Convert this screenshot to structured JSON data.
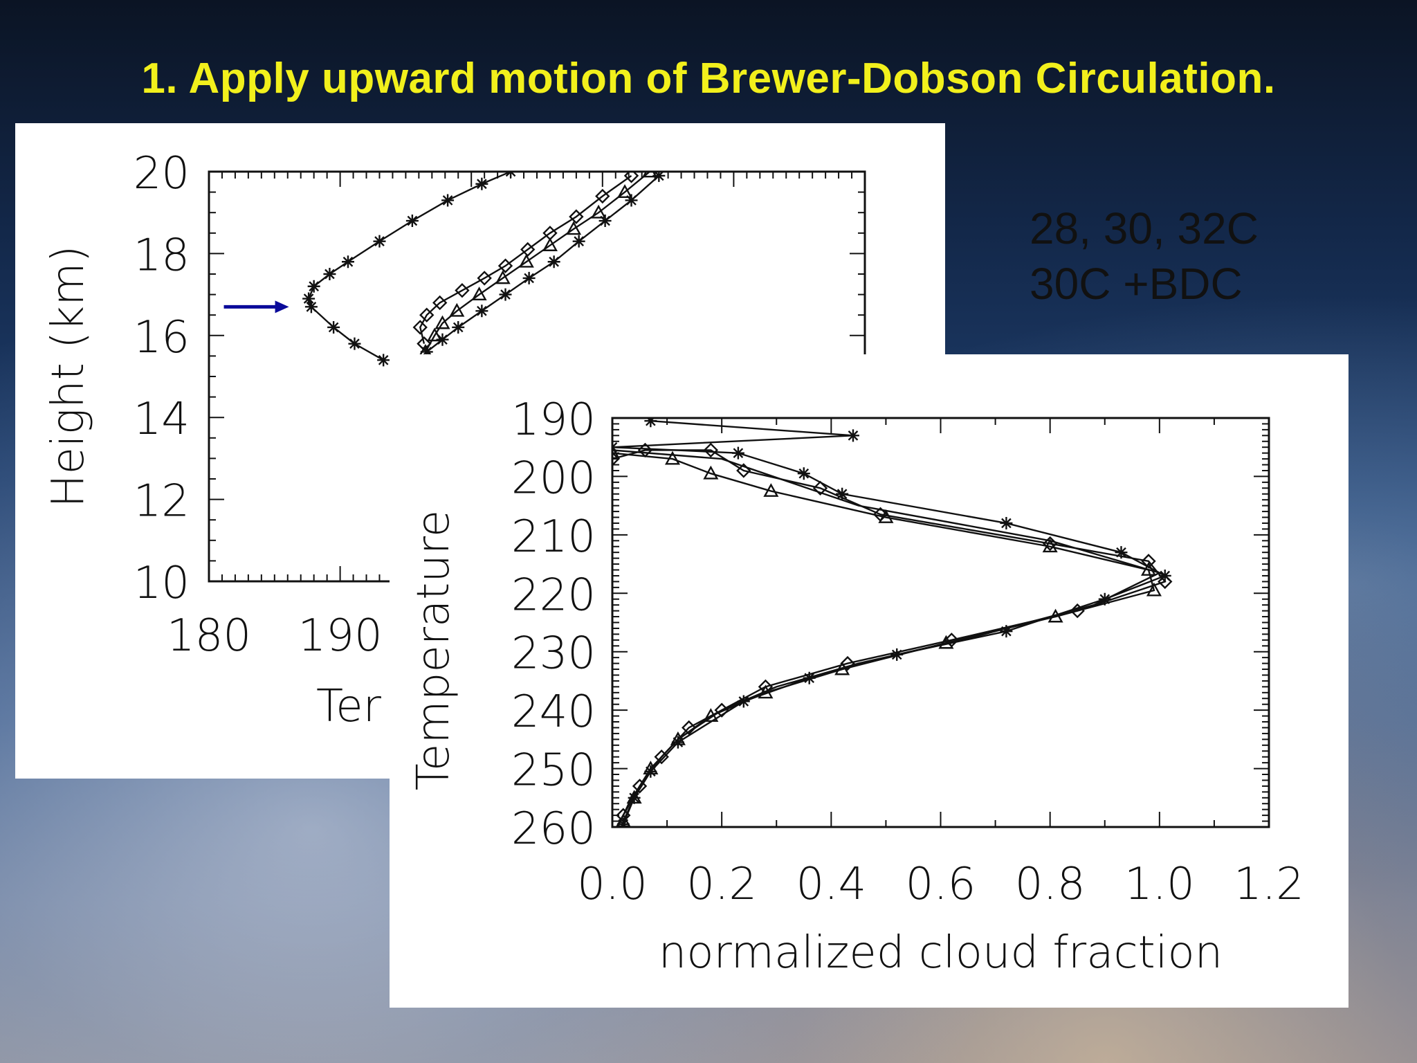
{
  "slide": {
    "title": "1.  Apply upward motion of Brewer-Dobson Circulation.",
    "annotation_lines": [
      "28, 30, 32C",
      "30C +BDC"
    ],
    "accent_colors": {
      "title": "#f2f01c",
      "arrow": "#0a0a9a"
    }
  },
  "chart_data": [
    {
      "type": "line",
      "title": "",
      "xlabel": "Ter",
      "ylabel": "Height (km)",
      "xlim": [
        180,
        230
      ],
      "ylim": [
        10,
        20
      ],
      "x_ticks": [
        "180",
        "190"
      ],
      "y_ticks": [
        "10",
        "12",
        "14",
        "16",
        "18",
        "20"
      ],
      "arrow_annotation": {
        "x": 186.2,
        "y": 16.7,
        "color": "#0a0a9a"
      },
      "series": [
        {
          "marker": "asterisk",
          "points": [
            [
              193.3,
              15.4
            ],
            [
              191.1,
              15.8
            ],
            [
              189.5,
              16.2
            ],
            [
              187.8,
              16.7
            ],
            [
              187.6,
              16.9
            ],
            [
              188.0,
              17.2
            ],
            [
              189.2,
              17.5
            ],
            [
              190.6,
              17.8
            ],
            [
              193.0,
              18.3
            ],
            [
              195.5,
              18.8
            ],
            [
              198.2,
              19.3
            ],
            [
              200.8,
              19.7
            ],
            [
              203.0,
              20.0
            ]
          ]
        },
        {
          "marker": "diamond",
          "points": [
            [
              196.4,
              15.8
            ],
            [
              196.1,
              16.2
            ],
            [
              196.6,
              16.5
            ],
            [
              197.6,
              16.8
            ],
            [
              199.3,
              17.1
            ],
            [
              201.0,
              17.4
            ],
            [
              202.6,
              17.7
            ],
            [
              204.3,
              18.1
            ],
            [
              206.0,
              18.5
            ],
            [
              208.0,
              18.9
            ],
            [
              210.0,
              19.4
            ],
            [
              212.2,
              19.9
            ]
          ]
        },
        {
          "marker": "triangle",
          "points": [
            [
              196.5,
              15.6
            ],
            [
              197.2,
              16.0
            ],
            [
              197.8,
              16.3
            ],
            [
              198.9,
              16.6
            ],
            [
              200.6,
              17.0
            ],
            [
              202.4,
              17.4
            ],
            [
              204.2,
              17.8
            ],
            [
              206.0,
              18.2
            ],
            [
              207.8,
              18.6
            ],
            [
              209.7,
              19.0
            ],
            [
              211.7,
              19.5
            ],
            [
              213.6,
              20.0
            ]
          ]
        },
        {
          "marker": "asterisk",
          "points": [
            [
              196.6,
              15.6
            ],
            [
              197.8,
              15.9
            ],
            [
              199.0,
              16.2
            ],
            [
              200.8,
              16.6
            ],
            [
              202.6,
              17.0
            ],
            [
              204.4,
              17.4
            ],
            [
              206.3,
              17.8
            ],
            [
              208.2,
              18.3
            ],
            [
              210.2,
              18.8
            ],
            [
              212.2,
              19.3
            ],
            [
              214.3,
              19.9
            ]
          ]
        }
      ]
    },
    {
      "type": "line",
      "title": "",
      "xlabel": "normalized cloud fraction",
      "ylabel": "Temperature",
      "xlim": [
        0.0,
        1.2
      ],
      "ylim": [
        190,
        260
      ],
      "y_inverted": true,
      "x_ticks": [
        "0.0",
        "0.2",
        "0.4",
        "0.6",
        "0.8",
        "1.0",
        "1.2"
      ],
      "y_ticks": [
        "190",
        "200",
        "210",
        "220",
        "230",
        "240",
        "250",
        "260"
      ],
      "series": [
        {
          "marker": "asterisk",
          "points": [
            [
              0.07,
              190.5
            ],
            [
              0.44,
              193.0
            ],
            [
              0.0,
              195.0
            ],
            [
              0.23,
              196.0
            ],
            [
              0.35,
              199.5
            ],
            [
              0.42,
              203.0
            ],
            [
              0.72,
              208.0
            ],
            [
              0.93,
              213.0
            ],
            [
              1.01,
              217.0
            ],
            [
              0.9,
              221.0
            ],
            [
              0.72,
              226.5
            ],
            [
              0.52,
              230.5
            ],
            [
              0.36,
              234.5
            ],
            [
              0.24,
              238.5
            ],
            [
              0.12,
              245.5
            ],
            [
              0.07,
              250.5
            ],
            [
              0.04,
              255.0
            ],
            [
              0.02,
              259.5
            ]
          ]
        },
        {
          "marker": "diamond",
          "points": [
            [
              0.0,
              197.0
            ],
            [
              0.06,
              195.5
            ],
            [
              0.18,
              195.5
            ],
            [
              0.24,
              199.0
            ],
            [
              0.38,
              202.0
            ],
            [
              0.49,
              206.5
            ],
            [
              0.8,
              211.5
            ],
            [
              0.98,
              214.5
            ],
            [
              1.01,
              218.0
            ],
            [
              0.85,
              223.0
            ],
            [
              0.62,
              228.0
            ],
            [
              0.43,
              232.0
            ],
            [
              0.28,
              236.0
            ],
            [
              0.2,
              240.0
            ],
            [
              0.14,
              243.0
            ],
            [
              0.09,
              248.0
            ],
            [
              0.05,
              253.0
            ],
            [
              0.02,
              258.0
            ]
          ]
        },
        {
          "marker": "triangle",
          "points": [
            [
              0.0,
              196.0
            ],
            [
              0.11,
              197.0
            ],
            [
              0.18,
              199.5
            ],
            [
              0.29,
              202.5
            ],
            [
              0.5,
              207.0
            ],
            [
              0.8,
              212.0
            ],
            [
              0.98,
              216.0
            ],
            [
              0.99,
              219.5
            ],
            [
              0.81,
              224.0
            ],
            [
              0.61,
              228.5
            ],
            [
              0.42,
              233.0
            ],
            [
              0.28,
              237.0
            ],
            [
              0.18,
              241.0
            ],
            [
              0.12,
              245.0
            ],
            [
              0.07,
              250.0
            ],
            [
              0.04,
              255.0
            ],
            [
              0.02,
              259.0
            ]
          ]
        },
        {
          "marker": "plain",
          "points": [
            [
              0.0,
              195.5
            ],
            [
              0.2,
              197.0
            ],
            [
              0.45,
              205.0
            ],
            [
              0.8,
              211.0
            ],
            [
              1.0,
              216.5
            ],
            [
              0.88,
              222.0
            ],
            [
              0.66,
              227.5
            ],
            [
              0.45,
              232.0
            ],
            [
              0.3,
              236.0
            ],
            [
              0.2,
              240.0
            ],
            [
              0.12,
              245.0
            ],
            [
              0.07,
              250.0
            ],
            [
              0.03,
              256.0
            ],
            [
              0.01,
              260.0
            ]
          ]
        }
      ]
    }
  ]
}
